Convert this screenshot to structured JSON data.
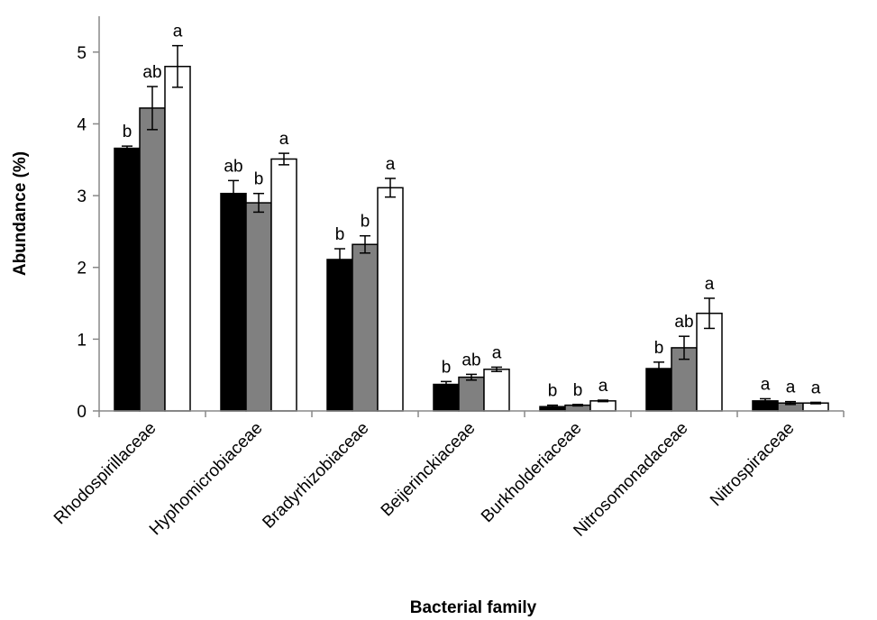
{
  "chart_data": {
    "type": "bar",
    "title": "",
    "xlabel": "Bacterial family",
    "ylabel": "Abundance (%)",
    "ylim": [
      0,
      5.5
    ],
    "yticks": [
      0,
      1,
      2,
      3,
      4,
      5
    ],
    "ytick_labels": [
      "0",
      "1",
      "2",
      "3",
      "4",
      "5"
    ],
    "grid": false,
    "legend": false,
    "categories": [
      "Rhodospirillaceae",
      "Hyphomicrobiaceae",
      "Bradyrhizobiaceae",
      "Beijerinckiaceae",
      "Burkholderiaceae",
      "Nitrosomonadaceae",
      "Nitrospiraceae"
    ],
    "series": [
      {
        "color": "#000000",
        "values": [
          3.66,
          3.03,
          2.11,
          0.37,
          0.06,
          0.59,
          0.14
        ],
        "errors": [
          0.03,
          0.18,
          0.15,
          0.04,
          0.02,
          0.09,
          0.03
        ],
        "significance": [
          "b",
          "ab",
          "b",
          "b",
          "b",
          "b",
          "a"
        ]
      },
      {
        "color": "#808080",
        "values": [
          4.22,
          2.9,
          2.32,
          0.47,
          0.08,
          0.88,
          0.11
        ],
        "errors": [
          0.3,
          0.13,
          0.12,
          0.04,
          0.01,
          0.16,
          0.02
        ],
        "significance": [
          "ab",
          "b",
          "b",
          "ab",
          "b",
          "ab",
          "a"
        ]
      },
      {
        "color": "#ffffff",
        "values": [
          4.8,
          3.51,
          3.11,
          0.58,
          0.14,
          1.36,
          0.11
        ],
        "errors": [
          0.29,
          0.08,
          0.13,
          0.03,
          0.01,
          0.21,
          0.01
        ],
        "significance": [
          "a",
          "a",
          "a",
          "a",
          "a",
          "a",
          "a"
        ]
      }
    ]
  }
}
